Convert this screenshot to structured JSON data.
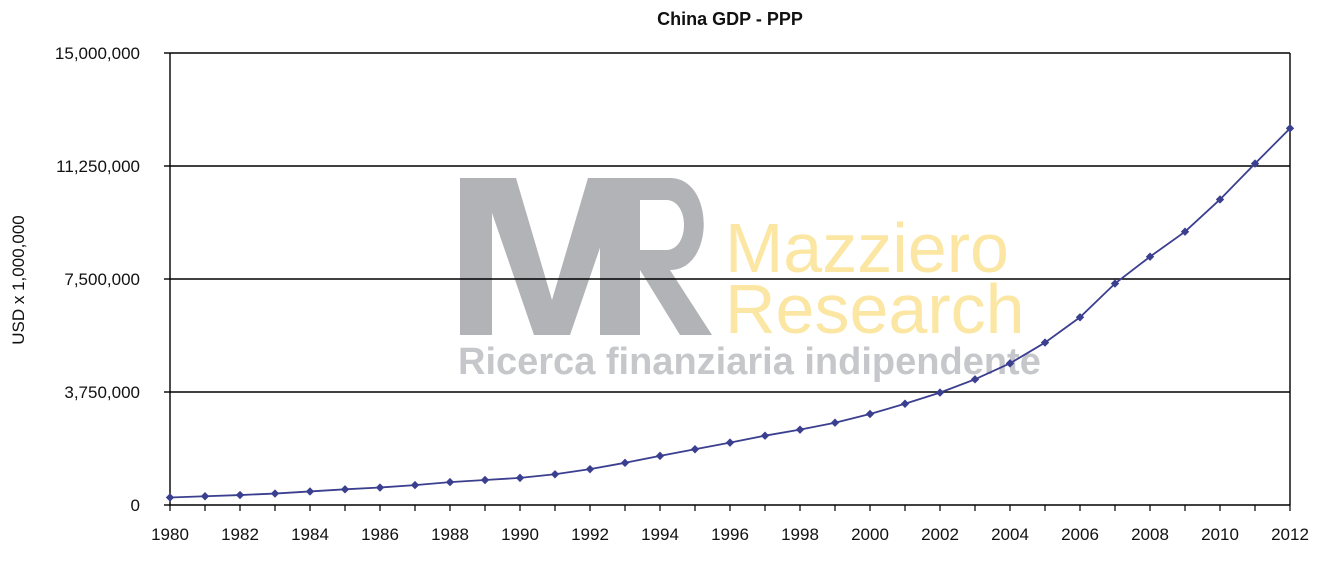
{
  "chart_data": {
    "type": "line",
    "title": "China GDP - PPP",
    "xlabel": "",
    "ylabel": "USD x 1,000,000",
    "x": [
      1980,
      1981,
      1982,
      1983,
      1984,
      1985,
      1986,
      1987,
      1988,
      1989,
      1990,
      1991,
      1992,
      1993,
      1994,
      1995,
      1996,
      1997,
      1998,
      1999,
      2000,
      2001,
      2002,
      2003,
      2004,
      2005,
      2006,
      2007,
      2008,
      2009,
      2010,
      2011,
      2012
    ],
    "series": [
      {
        "name": "",
        "color": "#3b3f8f",
        "values": [
          250000,
          290000,
          330000,
          380000,
          450000,
          520000,
          580000,
          660000,
          760000,
          830000,
          900000,
          1020000,
          1190000,
          1400000,
          1630000,
          1850000,
          2070000,
          2300000,
          2500000,
          2730000,
          3020000,
          3360000,
          3730000,
          4170000,
          4700000,
          5390000,
          6230000,
          7350000,
          8240000,
          9070000,
          10140000,
          11330000,
          12500000
        ]
      }
    ],
    "xlim": [
      1980,
      2012
    ],
    "ylim": [
      0,
      15000000
    ],
    "x_ticks": [
      1980,
      1982,
      1984,
      1986,
      1988,
      1990,
      1992,
      1994,
      1996,
      1998,
      2000,
      2002,
      2004,
      2006,
      2008,
      2010,
      2012
    ],
    "x_tick_labels": [
      "1980",
      "1982",
      "1984",
      "1986",
      "1988",
      "1990",
      "1992",
      "1994",
      "1996",
      "1998",
      "2000",
      "2002",
      "2004",
      "2006",
      "2008",
      "2010",
      "2012"
    ],
    "y_ticks": [
      0,
      3750000,
      7500000,
      11250000,
      15000000
    ],
    "y_tick_labels": [
      "0",
      "3,750,000",
      "7,500,000",
      "11,250,000",
      "15,000,000"
    ],
    "grid": "horizontal",
    "legend": "none",
    "watermark": {
      "logo": "MR",
      "line1": "Mazziero",
      "line2": "Research",
      "tagline": "Ricerca finanziaria indipendente"
    }
  }
}
